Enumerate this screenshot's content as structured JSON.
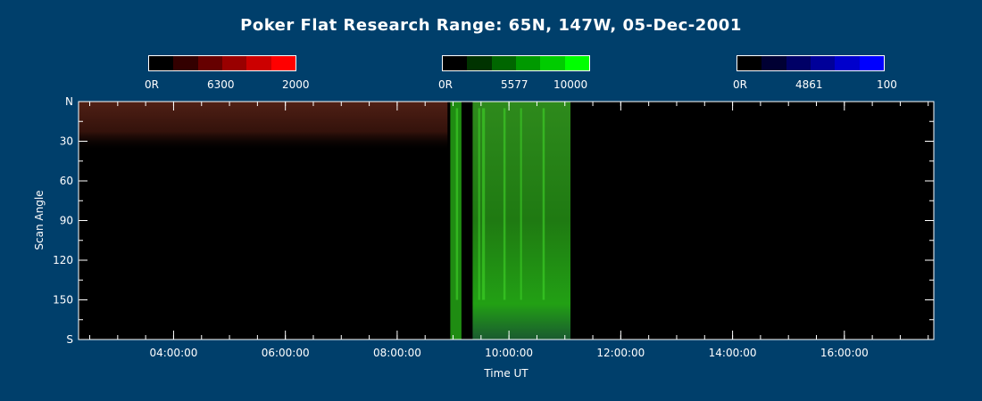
{
  "chart_data": {
    "type": "heatmap",
    "title": "Poker Flat Research Range: 65N, 147W, 05-Dec-2001",
    "xlabel": "Time UT",
    "ylabel": "Scan Angle",
    "xlim_hours": [
      2.3,
      17.6
    ],
    "ylim": [
      0,
      180
    ],
    "x_ticks": [
      {
        "value": 4,
        "label": "04:00:00"
      },
      {
        "value": 6,
        "label": "06:00:00"
      },
      {
        "value": 8,
        "label": "08:00:00"
      },
      {
        "value": 10,
        "label": "10:00:00"
      },
      {
        "value": 12,
        "label": "12:00:00"
      },
      {
        "value": 14,
        "label": "14:00:00"
      },
      {
        "value": 16,
        "label": "16:00:00"
      }
    ],
    "y_ticks": [
      {
        "value": 0,
        "label": "N"
      },
      {
        "value": 30,
        "label": "30"
      },
      {
        "value": 60,
        "label": "60"
      },
      {
        "value": 90,
        "label": "90"
      },
      {
        "value": 120,
        "label": "120"
      },
      {
        "value": 150,
        "label": "150"
      },
      {
        "value": 180,
        "label": "S"
      }
    ],
    "colorbars": [
      {
        "channel": "6300",
        "min_label": "0R",
        "mid_label": "6300",
        "max_label": "2000",
        "colors": [
          "#000000",
          "#330000",
          "#660000",
          "#990000",
          "#cc0000",
          "#ff0000"
        ]
      },
      {
        "channel": "5577",
        "min_label": "0R",
        "mid_label": "5577",
        "max_label": "10000",
        "colors": [
          "#000000",
          "#003300",
          "#006600",
          "#009900",
          "#00cc00",
          "#00ff00"
        ]
      },
      {
        "channel": "4861",
        "min_label": "0R",
        "mid_label": "4861",
        "max_label": "100",
        "colors": [
          "#000000",
          "#000033",
          "#000066",
          "#000099",
          "#0000cc",
          "#0000ff"
        ]
      }
    ],
    "data_regions": [
      {
        "channel": "6300",
        "t_start": 2.3,
        "t_end": 8.9,
        "angle_start": 0,
        "angle_end": 38,
        "intensity": "low"
      },
      {
        "channel": "5577",
        "t_start": 8.95,
        "t_end": 9.15,
        "angle_start": 0,
        "angle_end": 180,
        "intensity": "medium"
      },
      {
        "channel": "5577",
        "t_start": 9.35,
        "t_end": 11.1,
        "angle_start": 0,
        "angle_end": 180,
        "intensity": "high"
      }
    ]
  },
  "colors": {
    "background": "#003f6b",
    "axes": "#ffffff",
    "plot_bg": "#000000"
  }
}
